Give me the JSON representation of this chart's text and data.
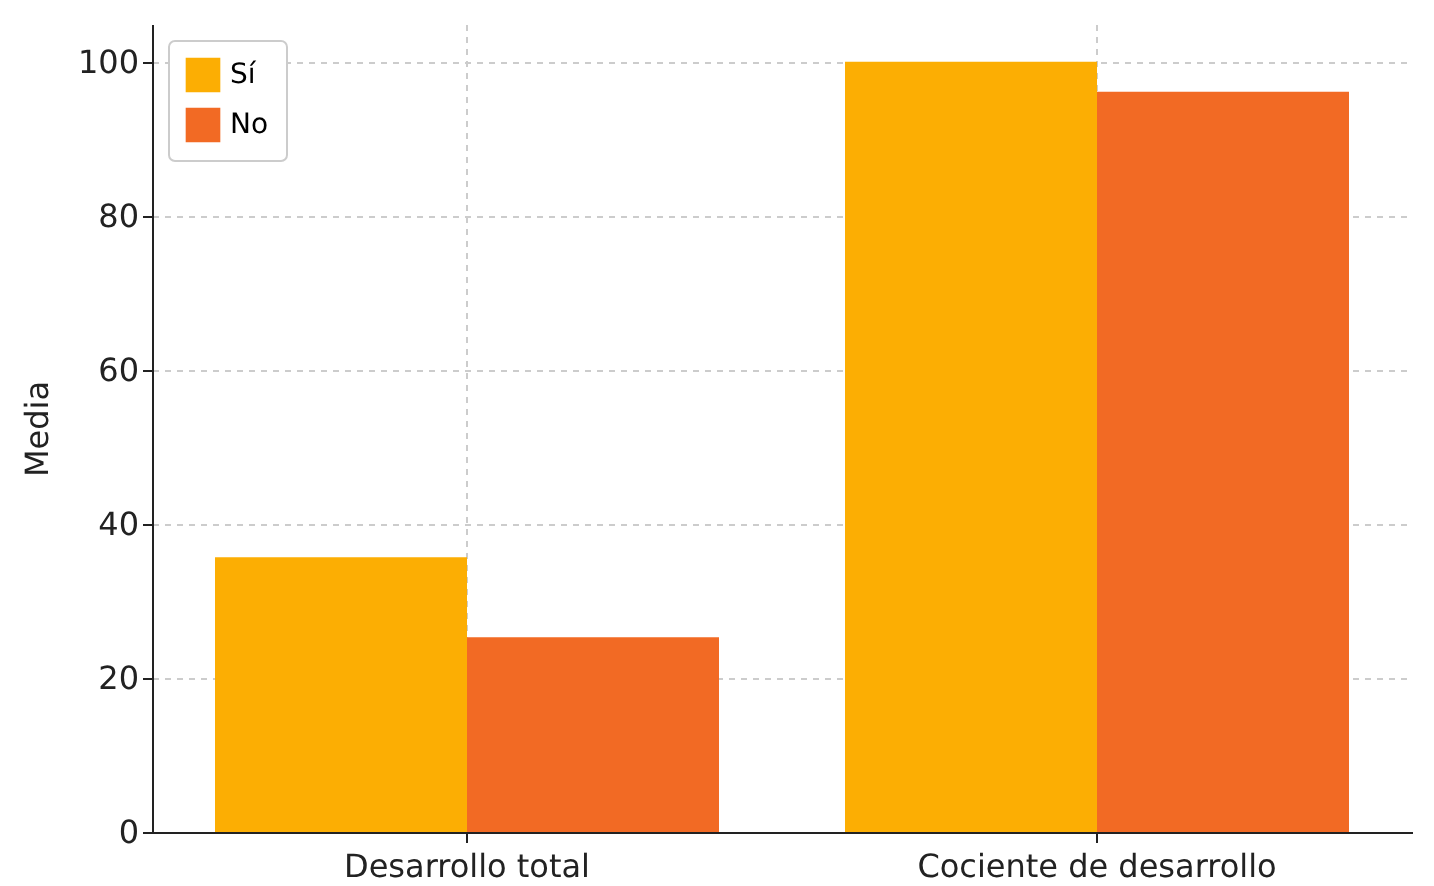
{
  "chart_data": {
    "type": "bar",
    "ylabel": "Media",
    "categories": [
      "Desarrollo total",
      "Cociente de desarrollo"
    ],
    "series": [
      {
        "name": "Sí",
        "color": "#fcae03",
        "values": [
          35.7,
          100.1
        ]
      },
      {
        "name": "No",
        "color": "#f26a24",
        "values": [
          25.3,
          96.2
        ]
      }
    ],
    "ylim": [
      0,
      105
    ],
    "yticks": [
      0,
      20,
      40,
      60,
      80,
      100
    ],
    "grid": true,
    "legend": "top left"
  }
}
